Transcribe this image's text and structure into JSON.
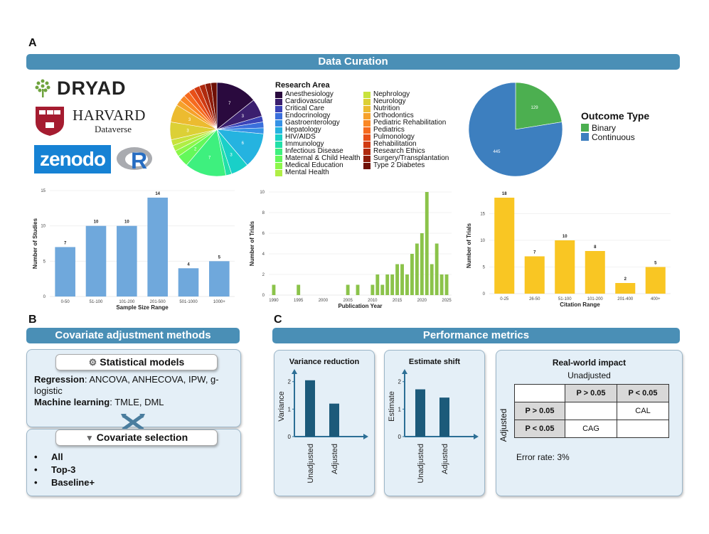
{
  "panels": {
    "a": "A",
    "b": "B",
    "c": "C"
  },
  "banners": {
    "curation": "Data Curation",
    "covariate": "Covariate adjustment methods",
    "performance": "Performance metrics"
  },
  "logos": {
    "dryad": "DRYAD",
    "harvard": "HARVARD",
    "dataverse": "Dataverse",
    "zenodo": "zenodo",
    "r": "R"
  },
  "colors": {
    "banner": "#4a8fb6",
    "bar_blue": "#6fa8dc",
    "bar_green": "#8bc34a",
    "bar_yellow": "#f9c623",
    "pie_binary": "#4caf50",
    "pie_cont": "#3d7fbf",
    "dark_bar": "#1c5a7a"
  },
  "research_legend": {
    "title": "Research Area",
    "items": [
      {
        "label": "Anesthesiology",
        "color": "#2a0a3e"
      },
      {
        "label": "Cardiovascular",
        "color": "#3b1f6e"
      },
      {
        "label": "Critical Care",
        "color": "#3b44b8"
      },
      {
        "label": "Endocrinology",
        "color": "#3a6fdc"
      },
      {
        "label": "Gastroenterology",
        "color": "#3592e6"
      },
      {
        "label": "Hepatology",
        "color": "#25b3e0"
      },
      {
        "label": "HIV/AIDS",
        "color": "#19d0c8"
      },
      {
        "label": "Immunology",
        "color": "#22e0a8"
      },
      {
        "label": "Infectious Disease",
        "color": "#3ef07e"
      },
      {
        "label": "Maternal & Child Health",
        "color": "#64f85a"
      },
      {
        "label": "Medical Education",
        "color": "#8cf74a"
      },
      {
        "label": "Mental Health",
        "color": "#b0ee45"
      },
      {
        "label": "Nephrology",
        "color": "#c8e23c"
      },
      {
        "label": "Neurology",
        "color": "#dcd036"
      },
      {
        "label": "Nutrition",
        "color": "#ecbb30"
      },
      {
        "label": "Orthodontics",
        "color": "#f6a12a"
      },
      {
        "label": "Pediatric Rehabilitation",
        "color": "#fa8724"
      },
      {
        "label": "Pediatrics",
        "color": "#f66a1e"
      },
      {
        "label": "Pulmonology",
        "color": "#e84f18"
      },
      {
        "label": "Rehabilitation",
        "color": "#d03a12"
      },
      {
        "label": "Research Ethics",
        "color": "#b02a0e"
      },
      {
        "label": "Surgery/Transplantation",
        "color": "#8e1c0a"
      },
      {
        "label": "Type 2 Diabetes",
        "color": "#6e1006"
      }
    ]
  },
  "chart_data": [
    {
      "type": "pie",
      "title": "Research Area",
      "labels": [
        "Anesthesiology",
        "Cardiovascular",
        "Critical Care",
        "Endocrinology",
        "Gastroenterology",
        "Hepatology",
        "HIV/AIDS",
        "Immunology",
        "Infectious Disease",
        "Maternal & Child Health",
        "Medical Education",
        "Mental Health",
        "Nephrology",
        "Neurology",
        "Nutrition",
        "Orthodontics",
        "Pediatric Rehabilitation",
        "Pediatrics",
        "Pulmonology",
        "Rehabilitation",
        "Research Ethics",
        "Surgery/Transplantation",
        "Type 2 Diabetes"
      ],
      "values": [
        7,
        3,
        1,
        1,
        1,
        6,
        3,
        1,
        7,
        2,
        1,
        1,
        1,
        3,
        3,
        1,
        1,
        1,
        1,
        1,
        1,
        1,
        1
      ],
      "value_labels": [
        "7",
        "3",
        "",
        "",
        "",
        "6",
        "3",
        "",
        "7",
        "2",
        "",
        "",
        "",
        "3",
        "3",
        "",
        "",
        "",
        "",
        "",
        "",
        "",
        ""
      ]
    },
    {
      "type": "pie",
      "title": "Outcome Type",
      "labels": [
        "Binary",
        "Continuous"
      ],
      "values": [
        129,
        445
      ],
      "value_labels": [
        "129",
        "445"
      ]
    },
    {
      "type": "bar",
      "xlabel": "Sample Size Range",
      "ylabel": "Number of Studies",
      "categories": [
        "0-50",
        "51-100",
        "101-200",
        "201-500",
        "501-1000",
        "1000+"
      ],
      "values": [
        7,
        10,
        10,
        14,
        4,
        5
      ],
      "ylim": [
        0,
        15
      ],
      "yticks": [
        0,
        5,
        10,
        15
      ]
    },
    {
      "type": "bar",
      "xlabel": "Publication Year",
      "ylabel": "Number of Trials",
      "x": [
        1990,
        1995,
        2005,
        2007,
        2010,
        2011,
        2012,
        2013,
        2014,
        2015,
        2016,
        2017,
        2018,
        2019,
        2020,
        2021,
        2022,
        2023,
        2024,
        2025
      ],
      "values": [
        1,
        1,
        1,
        1,
        1,
        2,
        1,
        2,
        2,
        3,
        3,
        2,
        4,
        5,
        6,
        10,
        3,
        5,
        2,
        2
      ],
      "xticks": [
        1990,
        1995,
        2000,
        2005,
        2010,
        2015,
        2020,
        2025
      ],
      "ylim": [
        0,
        10
      ],
      "yticks": [
        0,
        2,
        4,
        6,
        8,
        10
      ]
    },
    {
      "type": "bar",
      "xlabel": "Citation Range",
      "ylabel": "Number of Trials",
      "categories": [
        "0-25",
        "26-50",
        "51-100",
        "101-200",
        "201-400",
        "400+"
      ],
      "values": [
        18,
        7,
        10,
        8,
        2,
        5
      ],
      "ylim": [
        0,
        18
      ],
      "yticks": [
        0,
        5,
        10,
        15
      ]
    },
    {
      "type": "bar",
      "title": "Variance reduction",
      "xlabel": "",
      "ylabel": "Variance",
      "categories": [
        "Unadjusted",
        "Adjusted"
      ],
      "values": [
        2.05,
        1.2
      ],
      "ylim": [
        0,
        2.2
      ],
      "yticks": [
        0,
        1,
        2
      ]
    },
    {
      "type": "bar",
      "title": "Estimate shift",
      "xlabel": "",
      "ylabel": "Estimate",
      "categories": [
        "Unadjusted",
        "Adjusted"
      ],
      "values": [
        1.72,
        1.42
      ],
      "ylim": [
        0,
        2.2
      ],
      "yticks": [
        0,
        1,
        2
      ]
    }
  ],
  "outcome_legend": {
    "title": "Outcome Type",
    "items": [
      {
        "label": "Binary",
        "color": "#4caf50"
      },
      {
        "label": "Continuous",
        "color": "#3d7fbf"
      }
    ]
  },
  "stat_models": {
    "title": "Statistical models",
    "regression_label": "Regression",
    "regression_text": ": ANCOVA, ANHECOVA, IPW, g-logistic",
    "ml_label": "Machine learning",
    "ml_text": ": TMLE, DML"
  },
  "cov_selection": {
    "title": "Covariate selection",
    "items": [
      "All",
      "Top-3",
      "Baseline+"
    ]
  },
  "impact": {
    "title": "Real-world impact",
    "col_header": "Unadjusted",
    "row_header": "Adjusted",
    "cols": [
      "P > 0.05",
      "P < 0.05"
    ],
    "rows": [
      {
        "label": "P > 0.05",
        "cells": [
          "",
          "CAL"
        ]
      },
      {
        "label": "P < 0.05",
        "cells": [
          "CAG",
          ""
        ]
      }
    ],
    "error_rate": "Error rate: 3%"
  }
}
